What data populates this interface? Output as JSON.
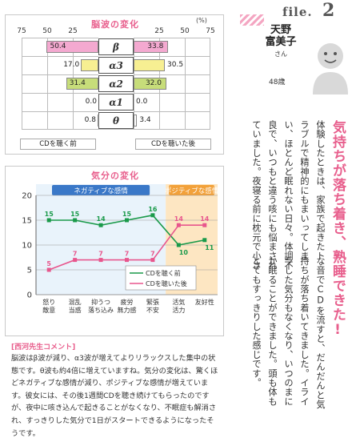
{
  "brainwave": {
    "title": "脳波の変化",
    "unit": "(%)",
    "ticks_left": [
      "75",
      "50",
      "25"
    ],
    "ticks_right": [
      "25",
      "50",
      "75"
    ],
    "rows": [
      {
        "label": "β",
        "before": 50.4,
        "after": 33.8,
        "before_text": "50.4",
        "after_text": "33.8"
      },
      {
        "label": "α3",
        "before": 17.0,
        "after": 30.5,
        "before_text": "17.0",
        "after_text": "30.5"
      },
      {
        "label": "α2",
        "before": 31.4,
        "after": 32.0,
        "before_text": "31.4",
        "after_text": "32.0"
      },
      {
        "label": "α1",
        "before": 0.0,
        "after": 0.0,
        "before_text": "0.0",
        "after_text": "0.0"
      },
      {
        "label": "θ",
        "before": 0.8,
        "after": 3.4,
        "before_text": "0.8",
        "after_text": "3.4"
      }
    ],
    "footer_before": "CDを聴く前",
    "footer_after": "CDを聴いた後",
    "colors": {
      "beta": "#f4a9d0",
      "alpha3": "#f7ef92",
      "alpha2": "#c7dd7a"
    }
  },
  "chart_data": {
    "type": "line",
    "title": "気分の変化",
    "categories": [
      "怒り\n敵意",
      "混乱\n当惑",
      "抑うつ\n落ち込み",
      "疲労\n無力感",
      "緊張\n不安",
      "活気\n活力",
      "友好性"
    ],
    "series": [
      {
        "name": "CDを聴く前",
        "color": "#1a9a4a",
        "values": [
          15,
          15,
          14,
          15,
          16,
          10,
          11
        ]
      },
      {
        "name": "CDを聴いた後",
        "color": "#e8568d",
        "values": [
          5,
          7,
          7,
          7,
          7,
          14,
          14
        ]
      }
    ],
    "ylim": [
      0,
      20
    ],
    "yticks": [
      0,
      5,
      10,
      15,
      20
    ],
    "band_negative": "ネガティブな感情",
    "band_positive": "ポジティブな感情"
  },
  "comment": {
    "title": "[西河先生コメント]",
    "body": "脳波はβ波が減り、α3波が増えてよりリラックスした集中の状態です。θ波も約4倍に増えていますね。気分の変化は、驚くほどネガティブな感情が減り、ポジティブな感情が増えています。彼女には、その後1週間CDを聴き続けてもらったのですが、夜中に咳き込んで起きることがなくなり、不眠症も解消され、すっきりした気分で1日がスタートできるようになったそうです。"
  },
  "file": {
    "label": "file.",
    "number": "2"
  },
  "profile": {
    "name_line1": "天野",
    "name_line2": "富美子",
    "honorific": "さん",
    "age": "48歳"
  },
  "headline": "気持ちが落ち着き、熟睡できた!",
  "story_columns": [
    "体験したときは、家族で起きたト",
    "ラブルで精神的にもまいってしま",
    "い、ほとんど眠れない日々。体調不",
    "良で、いつもと違う咳にも悩まされ",
    "ていました。夜寝る前に枕元で小さ",
    "な音でCDを流すと、だんだんと気",
    "持ちが落ち着いてきました。イライ",
    "ラした気分もなくなり、いつのまに",
    "か眠ることができました。頭も体も",
    "とてもすっきりした感じです。"
  ]
}
